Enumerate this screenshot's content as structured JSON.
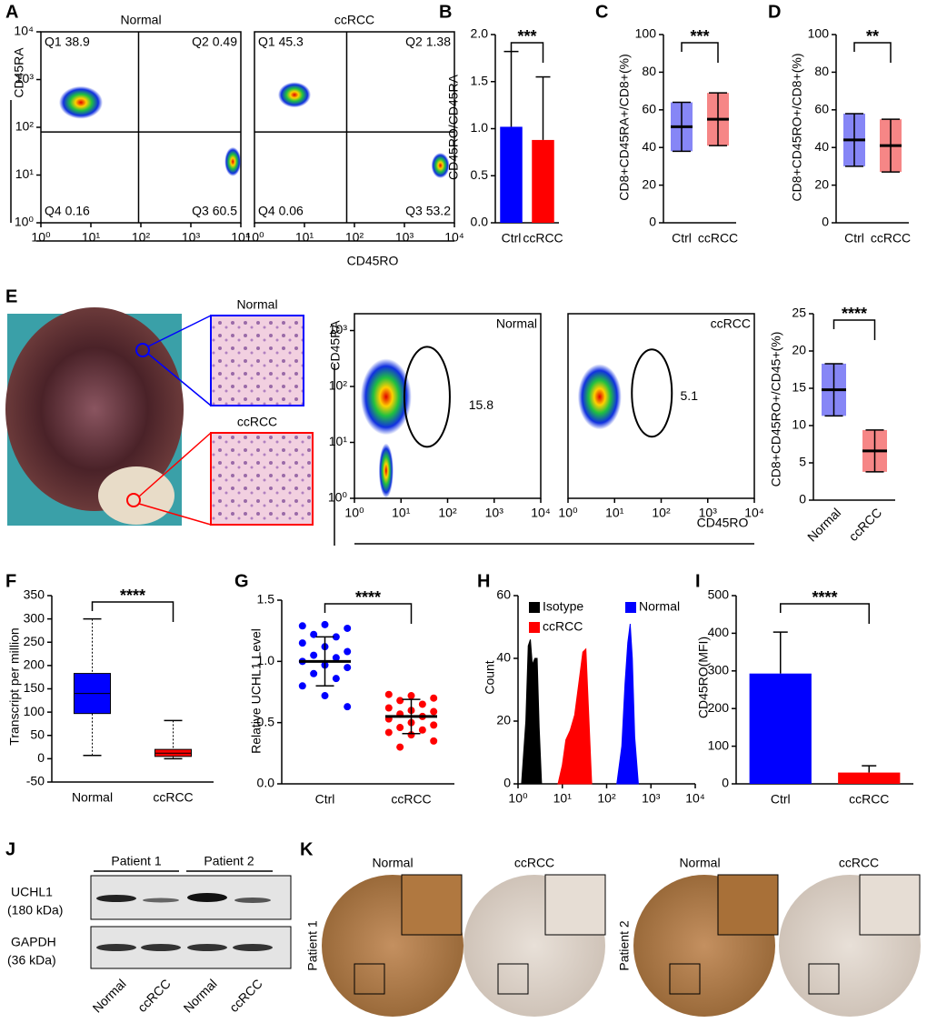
{
  "figure": {
    "panel_labels": [
      "A",
      "B",
      "C",
      "D",
      "E",
      "F",
      "G",
      "H",
      "I",
      "J",
      "K"
    ],
    "histology_labels": [
      "Normal",
      "ccRCC"
    ],
    "western": {
      "groups": [
        "Patient 1",
        "Patient 2"
      ],
      "rows": [
        [
          "UCHL1",
          "(180 kDa)"
        ],
        [
          "GAPDH",
          "(36 kDa)"
        ]
      ],
      "lanes": [
        "Normal",
        "ccRCC",
        "Normal",
        "ccRCC"
      ]
    },
    "ihc": {
      "columns": [
        "Normal",
        "ccRCC",
        "Normal",
        "ccRCC"
      ],
      "patients": [
        "Patient 1",
        "Patient 2"
      ]
    }
  },
  "chart_data": [
    {
      "type": "flow",
      "title": "Normal",
      "ylabel": "CD45RA",
      "xlabel": "CD45RO",
      "x_log": true,
      "y_log": true,
      "xlim": [
        1,
        10000
      ],
      "ylim": [
        1,
        10000
      ],
      "xticks": [
        {
          "value": 1,
          "label": "10⁰"
        },
        {
          "value": 10,
          "label": "10¹"
        },
        {
          "value": 100,
          "label": "10²"
        },
        {
          "value": 1000,
          "label": "10³"
        },
        {
          "value": 10000,
          "label": "10⁴"
        }
      ],
      "yticks": [
        {
          "value": 1,
          "label": "10⁰"
        },
        {
          "value": 10,
          "label": "10¹"
        },
        {
          "value": 100,
          "label": "10²"
        },
        {
          "value": 1000,
          "label": "10³"
        },
        {
          "value": 10000,
          "label": "10⁴"
        }
      ],
      "gate_x": 90,
      "gate_y": 80,
      "quadrants": [
        "Q1 38.9",
        "Q2 0.49",
        "Q4 0.16",
        "Q3 60.5"
      ]
    },
    {
      "type": "flow",
      "title": "ccRCC",
      "x_log": true,
      "y_log": true,
      "xlim": [
        1,
        10000
      ],
      "ylim": [
        1,
        10000
      ],
      "xticks": [
        {
          "value": 1,
          "label": "10⁰"
        },
        {
          "value": 10,
          "label": "10¹"
        },
        {
          "value": 100,
          "label": "10²"
        },
        {
          "value": 1000,
          "label": "10³"
        },
        {
          "value": 10000,
          "label": "10⁴"
        }
      ],
      "gate_x": 70,
      "gate_y": 80,
      "quadrants": [
        "Q1 45.3",
        "Q2 1.38",
        "Q4 0.06",
        "Q3 53.2"
      ]
    },
    {
      "type": "bar",
      "ylabel": "CD45RO/CD45RA",
      "categories": [
        "Ctrl",
        "ccRCC"
      ],
      "values": [
        1.02,
        0.88
      ],
      "errors": [
        0.8,
        0.67
      ],
      "colors": [
        "#0000ff",
        "#ff0000"
      ],
      "sig": "***",
      "ylim": [
        0,
        2
      ],
      "yticks": [
        {
          "value": 0,
          "label": "0.0"
        },
        {
          "value": 0.5,
          "label": "0.5"
        },
        {
          "value": 1,
          "label": "1.0"
        },
        {
          "value": 1.5,
          "label": "1.5"
        },
        {
          "value": 2,
          "label": "2.0"
        }
      ]
    },
    {
      "type": "dot",
      "ylabel": "CD8+CD45RA+/CD8+(%)",
      "categories": [
        "Ctrl",
        "ccRCC"
      ],
      "mean": [
        51,
        55
      ],
      "sd": [
        13,
        14
      ],
      "colors": [
        "#2222ee",
        "#ee2222"
      ],
      "sig": "***",
      "ylim": [
        0,
        100
      ],
      "yticks": [
        0,
        20,
        40,
        60,
        80,
        100
      ]
    },
    {
      "type": "dot",
      "ylabel": "CD8+CD45RO+/CD8+(%)",
      "categories": [
        "Ctrl",
        "ccRCC"
      ],
      "mean": [
        44,
        41
      ],
      "sd": [
        14,
        14
      ],
      "colors": [
        "#2222ee",
        "#ee2222"
      ],
      "sig": "**",
      "ylim": [
        0,
        100
      ],
      "yticks": [
        0,
        20,
        40,
        60,
        80,
        100
      ]
    },
    {
      "type": "flow",
      "title": "Normal",
      "ylabel": "CD45RA",
      "x_log": true,
      "y_log": true,
      "xlim": [
        1,
        10000
      ],
      "ylim": [
        1,
        2000
      ],
      "xticks": [
        {
          "value": 1,
          "label": "10⁰"
        },
        {
          "value": 10,
          "label": "10¹"
        },
        {
          "value": 100,
          "label": "10²"
        },
        {
          "value": 1000,
          "label": "10³"
        },
        {
          "value": 10000,
          "label": "10⁴"
        }
      ],
      "yticks": [
        {
          "value": 1,
          "label": "10⁰"
        },
        {
          "value": 10,
          "label": "10¹"
        },
        {
          "value": 100,
          "label": "10²"
        },
        {
          "value": 1000,
          "label": "10³"
        }
      ],
      "gate_label": "15.8"
    },
    {
      "type": "flow",
      "title": "ccRCC",
      "xlabel": "CD45RO",
      "x_log": true,
      "y_log": true,
      "xlim": [
        1,
        10000
      ],
      "ylim": [
        1,
        2000
      ],
      "xticks": [
        {
          "value": 1,
          "label": "10⁰"
        },
        {
          "value": 10,
          "label": "10¹"
        },
        {
          "value": 100,
          "label": "10²"
        },
        {
          "value": 1000,
          "label": "10³"
        },
        {
          "value": 10000,
          "label": "10⁴"
        }
      ],
      "gate_label": "5.1"
    },
    {
      "type": "dot",
      "ylabel": "CD8+CD45RO+/CD45+(%)",
      "categories": [
        "Normal",
        "ccRCC"
      ],
      "mean": [
        14.8,
        6.6
      ],
      "sd": [
        3.5,
        2.8
      ],
      "colors": [
        "#2222ee",
        "#ee2222"
      ],
      "sig": "****",
      "ylim": [
        0,
        25
      ],
      "yticks": [
        0,
        5,
        10,
        15,
        20,
        25
      ]
    },
    {
      "type": "box",
      "ylabel": "Transcript per million",
      "categories": [
        "Normal",
        "ccRCC"
      ],
      "boxes": [
        {
          "min": 7,
          "q1": 97,
          "median": 140,
          "q3": 183,
          "max": 300
        },
        {
          "min": 0,
          "q1": 5,
          "median": 12,
          "q3": 20,
          "max": 82
        }
      ],
      "colors": [
        "#0000ff",
        "#ff0000"
      ],
      "sig": "****",
      "ylim": [
        -50,
        350
      ],
      "yticks": [
        -50,
        0,
        50,
        100,
        150,
        200,
        250,
        300,
        350
      ]
    },
    {
      "type": "dot",
      "ylabel": "Relative UCHL1 Level",
      "categories": [
        "Ctrl",
        "ccRCC"
      ],
      "mean": [
        1.0,
        0.55
      ],
      "sd": [
        0.2,
        0.14
      ],
      "colors": [
        "#0000ff",
        "#ff0000"
      ],
      "sig": "****",
      "ylim": [
        0,
        1.5
      ],
      "yticks": [
        {
          "value": 0,
          "label": "0.0"
        },
        {
          "value": 0.5,
          "label": "0.5"
        },
        {
          "value": 1,
          "label": "1.0"
        },
        {
          "value": 1.5,
          "label": "1.5"
        }
      ],
      "points": [
        [
          1.29,
          1.3,
          1.27,
          1.22,
          1.2,
          1.15,
          1.12,
          1.08,
          1.05,
          1.03,
          1.0,
          0.97,
          0.95,
          0.9,
          0.86,
          0.8,
          0.72,
          0.63
        ],
        [
          0.73,
          0.72,
          0.7,
          0.68,
          0.65,
          0.62,
          0.6,
          0.59,
          0.57,
          0.55,
          0.53,
          0.5,
          0.48,
          0.46,
          0.44,
          0.42,
          0.4,
          0.35,
          0.3
        ]
      ]
    },
    {
      "type": "density",
      "ylabel": "Count",
      "x_log": true,
      "xlim": [
        1,
        10000
      ],
      "ylim": [
        0,
        60
      ],
      "yticks": [
        0,
        20,
        40,
        60
      ],
      "xticks": [
        {
          "value": 1,
          "label": "10⁰"
        },
        {
          "value": 10,
          "label": "10¹"
        },
        {
          "value": 100,
          "label": "10²"
        },
        {
          "value": 1000,
          "label": "10³"
        },
        {
          "value": 10000,
          "label": "10⁴"
        }
      ],
      "series": [
        {
          "name": "Isotype",
          "color": "#000000",
          "x": [
            1.2,
            1.5,
            1.7,
            1.9,
            2.1,
            2.4,
            2.7,
            3.0,
            3.4
          ],
          "values": [
            0,
            20,
            44,
            46,
            38,
            40,
            40,
            18,
            0
          ]
        },
        {
          "name": "Normal",
          "color": "#0000ff",
          "x": [
            170,
            220,
            260,
            300,
            340,
            380,
            430,
            520
          ],
          "values": [
            0,
            12,
            32,
            45,
            51,
            40,
            15,
            0
          ]
        },
        {
          "name": "ccRCC",
          "color": "#ff0000",
          "x": [
            8,
            10,
            12,
            15,
            19,
            24,
            29,
            34,
            40,
            46
          ],
          "values": [
            0,
            6,
            14,
            17,
            22,
            33,
            42,
            43,
            20,
            0
          ]
        }
      ]
    },
    {
      "type": "bar",
      "ylabel": "CD45RO(MFI)",
      "categories": [
        "Ctrl",
        "ccRCC"
      ],
      "values": [
        293,
        30
      ],
      "errors": [
        110,
        18
      ],
      "colors": [
        "#0000ff",
        "#ff0000"
      ],
      "sig": "****",
      "ylim": [
        0,
        500
      ],
      "yticks": [
        0,
        100,
        200,
        300,
        400,
        500
      ]
    }
  ]
}
